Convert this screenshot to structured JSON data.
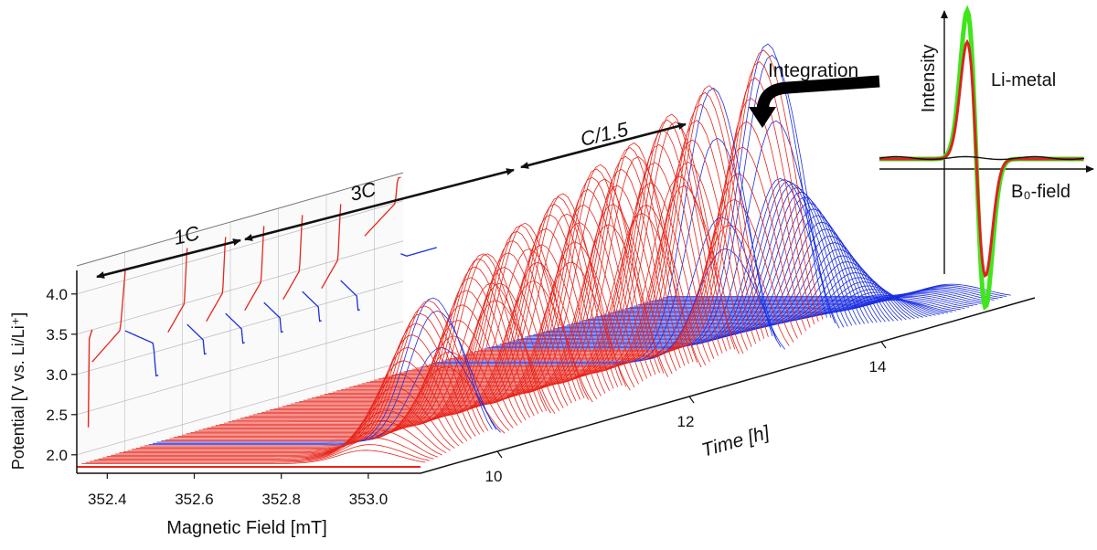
{
  "chart_data": {
    "type": "waterfall-3d",
    "main": {
      "axis_x": {
        "label": "Magnetic Field [mT]",
        "ticks": [
          "352.4",
          "352.6",
          "352.8",
          "353.0"
        ],
        "range": [
          352.33,
          353.12
        ]
      },
      "axis_time": {
        "label": "Time [h]",
        "ticks": [
          "10",
          "12",
          "14"
        ],
        "range": [
          9.2,
          15.6
        ]
      },
      "axis_potential": {
        "label": "Potential [V vs. Li/Li⁺]",
        "ticks": [
          "2.0",
          "2.5",
          "3.0",
          "3.5",
          "4.0"
        ],
        "range": [
          1.85,
          4.35
        ]
      },
      "segments": [
        {
          "label": "1C",
          "t_start": 9.2,
          "t_end": 10.2
        },
        {
          "label": "3C",
          "t_start": 10.25,
          "t_end": 12.35
        },
        {
          "label": "C/1.5",
          "t_start": 12.4,
          "t_end": 13.35
        }
      ],
      "signal_peak_heights": [
        0.48,
        0.58,
        0.64,
        0.7,
        0.76,
        0.8,
        0.86,
        0.92,
        1.0
      ],
      "colors": {
        "charge": "#e8251b",
        "discharge": "#1c2ee0",
        "axis": "#111111",
        "grid": "#bdbdbd"
      }
    },
    "inset": {
      "xlabel": "B₀-field",
      "ylabel": "Intensity",
      "series": [
        {
          "name": "Li-metal"
        }
      ],
      "colors": {
        "outer": "#3ee61a",
        "inner": "#dd2222",
        "baseline": "#111111"
      }
    },
    "annotation": {
      "text": "Integration"
    }
  }
}
